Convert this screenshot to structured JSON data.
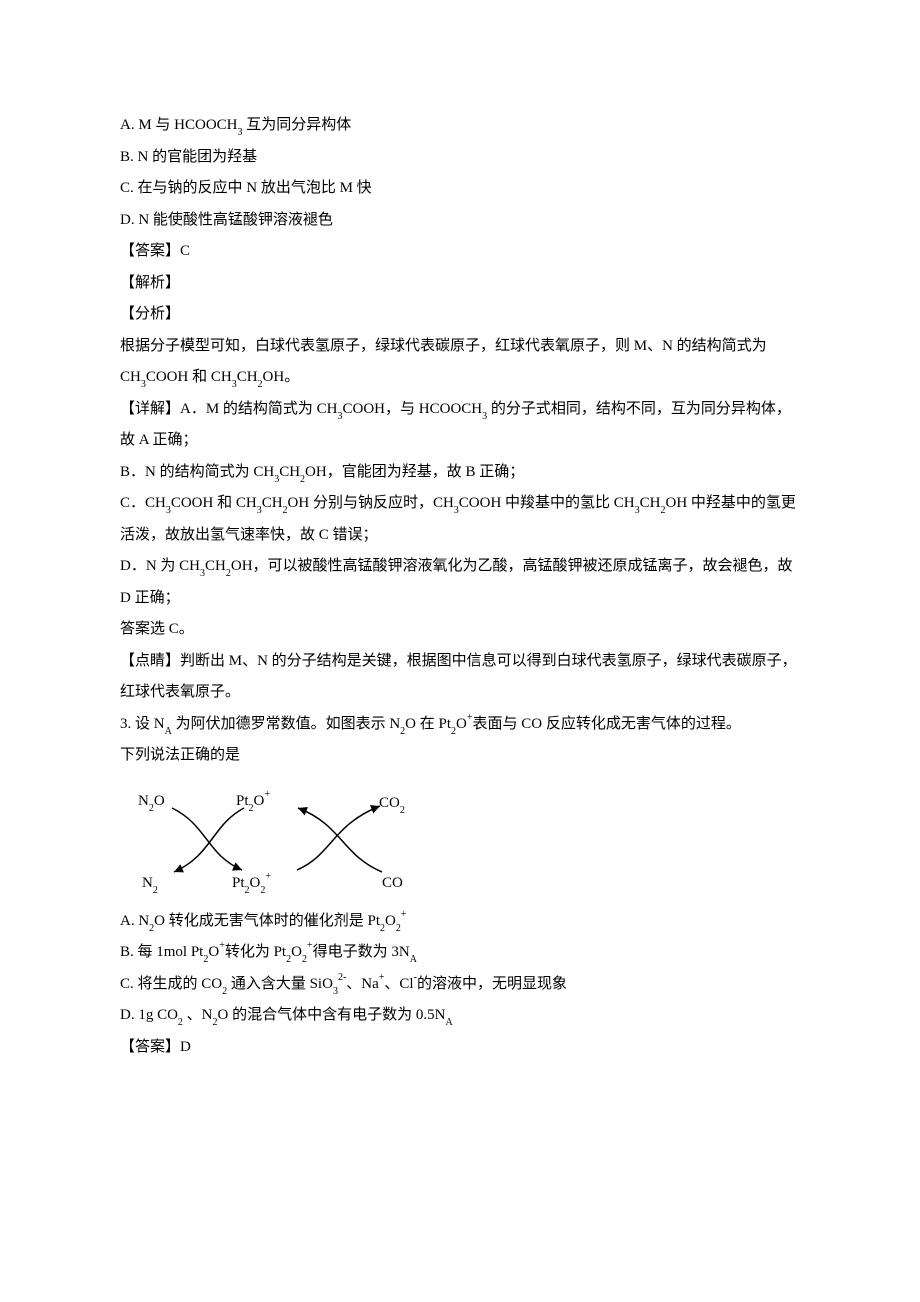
{
  "options": {
    "A": "A. M 与 HCOOCH₃ 互为同分异构体",
    "B": "B. N 的官能团为羟基",
    "C": "C. 在与钠的反应中 N 放出气泡比 M 快",
    "D": "D. N 能使酸性高锰酸钾溶液褪色"
  },
  "answer_label": "【答案】C",
  "explain_label": "【解析】",
  "analysis_label": "【分析】",
  "analysis_text1": "根据分子模型可知，白球代表氢原子，绿球代表碳原子，红球代表氧原子，则 M、N 的结构简式为 CH₃COOH 和 CH₃CH₂OH。",
  "detail_A": "【详解】A．M 的结构简式为 CH₃COOH，与 HCOOCH₃ 的分子式相同，结构不同，互为同分异构体，故 A 正确；",
  "detail_B": "B．N 的结构简式为 CH₃CH₂OH，官能团为羟基，故 B 正确；",
  "detail_C": "C．CH₃COOH 和 CH₃CH₂OH 分别与钠反应时，CH₃COOH 中羧基中的氢比 CH₃CH₂OH 中羟基中的氢更活泼，故放出氢气速率快，故 C 错误；",
  "detail_D": "D．N 为 CH₃CH₂OH，可以被酸性高锰酸钾溶液氧化为乙酸，高锰酸钾被还原成锰离子，故会褪色，故 D 正确；",
  "final_answer": "答案选 C。",
  "hint": "【点睛】判断出 M、N 的分子结构是关键，根据图中信息可以得到白球代表氢原子，绿球代表碳原子，红球代表氧原子。",
  "q3_stem1": "3. 设 NA 为阿伏加德罗常数值。如图表示 N₂O 在 Pt₂O⁺表面与 CO 反应转化成无害气体的过程。",
  "q3_stem2": "下列说法正确的是",
  "diagram": {
    "top_left": "N₂O",
    "bottom_left": "N₂",
    "top_mid": "Pt₂O⁺",
    "bottom_mid": "Pt₂O₂⁺",
    "top_right": "CO₂",
    "bottom_right": "CO",
    "stroke": "#000000",
    "stroke_width": 1.5
  },
  "q3_options": {
    "A": "A. N₂O 转化成无害气体时的催化剂是 Pt₂O₂⁺",
    "B": "B. 每 1mol Pt₂O⁺转化为 Pt₂O₂⁺得电子数为 3NA",
    "C": "C. 将生成的 CO₂ 通入含大量 SiO₃²⁻、Na⁺、Cl⁻的溶液中，无明显现象",
    "D": "D. 1g CO₂ 、N₂O 的混合气体中含有电子数为 0.5NA"
  },
  "q3_answer": "【答案】D",
  "colors": {
    "text": "#000000",
    "background": "#ffffff"
  },
  "font": {
    "family": "SimSun",
    "size_pt": 12
  }
}
